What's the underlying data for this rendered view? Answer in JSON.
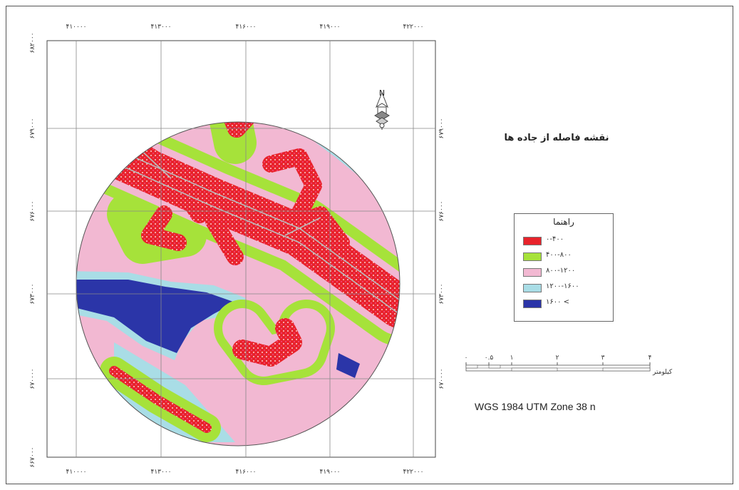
{
  "map": {
    "title": "نقشه فاصله از جاده ها",
    "projection": "WGS 1984 UTM Zone 38 n",
    "north_label": "N",
    "x_ticks": [
      "۴۱۰۰۰۰",
      "۴۱۳۰۰۰",
      "۴۱۶۰۰۰",
      "۴۱۹۰۰۰",
      "۴۲۲۰۰۰"
    ],
    "y_ticks": [
      "۶۸۲۰۰۰",
      "۶۷۹۰۰۰",
      "۶۷۶۰۰۰",
      "۶۷۳۰۰۰",
      "۶۷۰۰۰۰",
      "۶۶۷۰۰۰"
    ],
    "legend": {
      "title": "راهنما",
      "items": [
        {
          "label": "۰-۴۰۰",
          "color": "#e8232b"
        },
        {
          "label": "۴۰۰-۸۰۰",
          "color": "#a6e23a"
        },
        {
          "label": "۸۰۰-۱۲۰۰",
          "color": "#f2b8d2"
        },
        {
          "label": "۱۲۰۰-۱۶۰۰",
          "color": "#a9dde6"
        },
        {
          "label": "۱۶۰۰ <",
          "color": "#2b35a8"
        }
      ]
    },
    "scale_bar": {
      "ticks": [
        "۰",
        "۰.۵",
        "۱",
        "۲",
        "۳",
        "۴"
      ],
      "unit": "کیلومتر"
    }
  }
}
